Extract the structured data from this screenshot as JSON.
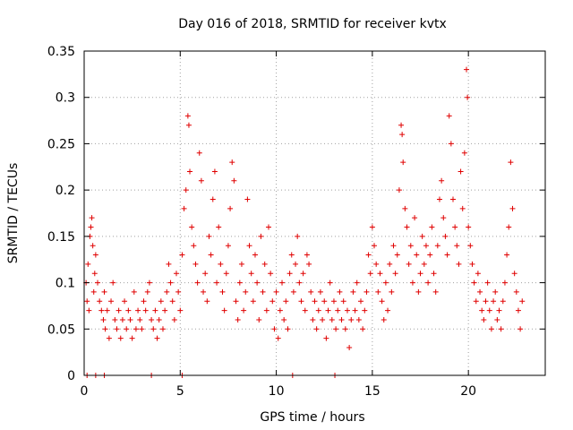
{
  "chart_data": {
    "type": "scatter",
    "title": "Day 016 of 2018, SRMTID for receiver kvtx",
    "xlabel": "GPS time / hours",
    "ylabel": "SRMTID / TECUs",
    "xlim": [
      0,
      24
    ],
    "ylim": [
      0,
      0.35
    ],
    "xticks": [
      0,
      5,
      10,
      15,
      20
    ],
    "xtick_labels": [
      "0",
      "5",
      "10",
      "15",
      "20"
    ],
    "yticks": [
      0,
      0.05,
      0.1,
      0.15,
      0.2,
      0.25,
      0.3,
      0.35
    ],
    "ytick_labels": [
      "0",
      "0.05",
      "0.1",
      "0.15",
      "0.2",
      "0.25",
      "0.3",
      "0.35"
    ],
    "grid": true,
    "legend": null,
    "marker": "+",
    "series": [
      {
        "name": "SRMTID",
        "color": "#e00000",
        "points": [
          [
            0.1,
            0.1
          ],
          [
            0.15,
            0.08
          ],
          [
            0.2,
            0.12
          ],
          [
            0.25,
            0.07
          ],
          [
            0.3,
            0.15
          ],
          [
            0.35,
            0.16
          ],
          [
            0.4,
            0.17
          ],
          [
            0.45,
            0.14
          ],
          [
            0.5,
            0.09
          ],
          [
            0.55,
            0.11
          ],
          [
            0.6,
            0.13
          ],
          [
            0.7,
            0.1
          ],
          [
            0.8,
            0.08
          ],
          [
            0.9,
            0.07
          ],
          [
            1.0,
            0.06
          ],
          [
            1.05,
            0.09
          ],
          [
            1.1,
            0.05
          ],
          [
            1.2,
            0.07
          ],
          [
            1.3,
            0.04
          ],
          [
            1.4,
            0.08
          ],
          [
            1.5,
            0.1
          ],
          [
            1.6,
            0.06
          ],
          [
            1.7,
            0.05
          ],
          [
            1.8,
            0.07
          ],
          [
            1.9,
            0.04
          ],
          [
            2.0,
            0.06
          ],
          [
            2.1,
            0.08
          ],
          [
            2.2,
            0.05
          ],
          [
            2.3,
            0.07
          ],
          [
            2.4,
            0.06
          ],
          [
            2.5,
            0.04
          ],
          [
            2.6,
            0.09
          ],
          [
            2.7,
            0.05
          ],
          [
            2.8,
            0.07
          ],
          [
            2.9,
            0.06
          ],
          [
            3.0,
            0.05
          ],
          [
            3.1,
            0.08
          ],
          [
            3.2,
            0.07
          ],
          [
            3.3,
            0.09
          ],
          [
            3.4,
            0.1
          ],
          [
            3.5,
            0.06
          ],
          [
            3.6,
            0.05
          ],
          [
            3.7,
            0.07
          ],
          [
            3.8,
            0.04
          ],
          [
            3.9,
            0.06
          ],
          [
            4.0,
            0.08
          ],
          [
            4.1,
            0.05
          ],
          [
            4.2,
            0.07
          ],
          [
            4.3,
            0.09
          ],
          [
            4.4,
            0.12
          ],
          [
            4.5,
            0.1
          ],
          [
            4.6,
            0.08
          ],
          [
            4.7,
            0.06
          ],
          [
            4.8,
            0.11
          ],
          [
            4.9,
            0.09
          ],
          [
            5.0,
            0.07
          ],
          [
            5.1,
            0.13
          ],
          [
            5.2,
            0.18
          ],
          [
            5.3,
            0.2
          ],
          [
            5.4,
            0.28
          ],
          [
            5.45,
            0.27
          ],
          [
            5.5,
            0.22
          ],
          [
            5.6,
            0.16
          ],
          [
            5.7,
            0.14
          ],
          [
            5.8,
            0.12
          ],
          [
            5.9,
            0.1
          ],
          [
            6.0,
            0.24
          ],
          [
            6.1,
            0.21
          ],
          [
            6.2,
            0.09
          ],
          [
            6.3,
            0.11
          ],
          [
            6.4,
            0.08
          ],
          [
            6.5,
            0.15
          ],
          [
            6.6,
            0.13
          ],
          [
            6.7,
            0.19
          ],
          [
            6.8,
            0.22
          ],
          [
            6.9,
            0.1
          ],
          [
            7.0,
            0.16
          ],
          [
            7.1,
            0.12
          ],
          [
            7.2,
            0.09
          ],
          [
            7.3,
            0.07
          ],
          [
            7.4,
            0.11
          ],
          [
            7.5,
            0.14
          ],
          [
            7.6,
            0.18
          ],
          [
            7.7,
            0.23
          ],
          [
            7.8,
            0.21
          ],
          [
            7.9,
            0.08
          ],
          [
            8.0,
            0.06
          ],
          [
            8.1,
            0.1
          ],
          [
            8.2,
            0.12
          ],
          [
            8.3,
            0.07
          ],
          [
            8.4,
            0.09
          ],
          [
            8.5,
            0.19
          ],
          [
            8.6,
            0.14
          ],
          [
            8.7,
            0.11
          ],
          [
            8.8,
            0.08
          ],
          [
            8.9,
            0.13
          ],
          [
            9.0,
            0.1
          ],
          [
            9.1,
            0.06
          ],
          [
            9.2,
            0.15
          ],
          [
            9.3,
            0.09
          ],
          [
            9.4,
            0.12
          ],
          [
            9.5,
            0.07
          ],
          [
            9.6,
            0.16
          ],
          [
            9.7,
            0.11
          ],
          [
            9.8,
            0.08
          ],
          [
            9.9,
            0.05
          ],
          [
            10.0,
            0.09
          ],
          [
            10.1,
            0.04
          ],
          [
            10.2,
            0.07
          ],
          [
            10.3,
            0.1
          ],
          [
            10.4,
            0.06
          ],
          [
            10.5,
            0.08
          ],
          [
            10.6,
            0.05
          ],
          [
            10.7,
            0.11
          ],
          [
            10.8,
            0.13
          ],
          [
            10.9,
            0.09
          ],
          [
            11.0,
            0.12
          ],
          [
            11.1,
            0.15
          ],
          [
            11.2,
            0.1
          ],
          [
            11.3,
            0.08
          ],
          [
            11.4,
            0.11
          ],
          [
            11.5,
            0.07
          ],
          [
            11.6,
            0.13
          ],
          [
            11.7,
            0.12
          ],
          [
            11.8,
            0.09
          ],
          [
            11.9,
            0.06
          ],
          [
            12.0,
            0.08
          ],
          [
            12.1,
            0.05
          ],
          [
            12.2,
            0.07
          ],
          [
            12.3,
            0.09
          ],
          [
            12.4,
            0.06
          ],
          [
            12.5,
            0.08
          ],
          [
            12.6,
            0.04
          ],
          [
            12.7,
            0.07
          ],
          [
            12.8,
            0.1
          ],
          [
            12.9,
            0.06
          ],
          [
            13.0,
            0.08
          ],
          [
            13.1,
            0.05
          ],
          [
            13.2,
            0.07
          ],
          [
            13.3,
            0.09
          ],
          [
            13.4,
            0.06
          ],
          [
            13.5,
            0.08
          ],
          [
            13.6,
            0.05
          ],
          [
            13.7,
            0.07
          ],
          [
            13.8,
            0.03
          ],
          [
            13.9,
            0.06
          ],
          [
            14.0,
            0.09
          ],
          [
            14.1,
            0.07
          ],
          [
            14.2,
            0.1
          ],
          [
            14.3,
            0.06
          ],
          [
            14.4,
            0.08
          ],
          [
            14.5,
            0.05
          ],
          [
            14.6,
            0.07
          ],
          [
            14.7,
            0.09
          ],
          [
            14.8,
            0.13
          ],
          [
            14.9,
            0.11
          ],
          [
            15.0,
            0.16
          ],
          [
            15.1,
            0.14
          ],
          [
            15.2,
            0.12
          ],
          [
            15.3,
            0.09
          ],
          [
            15.4,
            0.11
          ],
          [
            15.5,
            0.08
          ],
          [
            15.6,
            0.06
          ],
          [
            15.7,
            0.1
          ],
          [
            15.8,
            0.07
          ],
          [
            15.9,
            0.12
          ],
          [
            16.0,
            0.09
          ],
          [
            16.1,
            0.14
          ],
          [
            16.2,
            0.11
          ],
          [
            16.3,
            0.13
          ],
          [
            16.4,
            0.2
          ],
          [
            16.5,
            0.27
          ],
          [
            16.55,
            0.26
          ],
          [
            16.6,
            0.23
          ],
          [
            16.7,
            0.18
          ],
          [
            16.8,
            0.16
          ],
          [
            16.9,
            0.12
          ],
          [
            17.0,
            0.14
          ],
          [
            17.1,
            0.1
          ],
          [
            17.2,
            0.17
          ],
          [
            17.3,
            0.13
          ],
          [
            17.4,
            0.09
          ],
          [
            17.5,
            0.11
          ],
          [
            17.6,
            0.15
          ],
          [
            17.7,
            0.12
          ],
          [
            17.8,
            0.14
          ],
          [
            17.9,
            0.1
          ],
          [
            18.0,
            0.13
          ],
          [
            18.1,
            0.16
          ],
          [
            18.2,
            0.11
          ],
          [
            18.3,
            0.09
          ],
          [
            18.4,
            0.14
          ],
          [
            18.5,
            0.19
          ],
          [
            18.6,
            0.21
          ],
          [
            18.7,
            0.17
          ],
          [
            18.8,
            0.15
          ],
          [
            18.9,
            0.13
          ],
          [
            19.0,
            0.28
          ],
          [
            19.1,
            0.25
          ],
          [
            19.2,
            0.19
          ],
          [
            19.3,
            0.16
          ],
          [
            19.4,
            0.14
          ],
          [
            19.5,
            0.12
          ],
          [
            19.6,
            0.22
          ],
          [
            19.7,
            0.18
          ],
          [
            19.8,
            0.24
          ],
          [
            19.9,
            0.33
          ],
          [
            19.95,
            0.3
          ],
          [
            20.0,
            0.16
          ],
          [
            20.1,
            0.14
          ],
          [
            20.2,
            0.12
          ],
          [
            20.3,
            0.1
          ],
          [
            20.4,
            0.08
          ],
          [
            20.5,
            0.11
          ],
          [
            20.6,
            0.09
          ],
          [
            20.7,
            0.07
          ],
          [
            20.8,
            0.06
          ],
          [
            20.9,
            0.08
          ],
          [
            21.0,
            0.1
          ],
          [
            21.1,
            0.07
          ],
          [
            21.2,
            0.05
          ],
          [
            21.3,
            0.08
          ],
          [
            21.4,
            0.09
          ],
          [
            21.5,
            0.06
          ],
          [
            21.6,
            0.07
          ],
          [
            21.7,
            0.05
          ],
          [
            21.8,
            0.08
          ],
          [
            21.9,
            0.1
          ],
          [
            22.0,
            0.13
          ],
          [
            22.1,
            0.16
          ],
          [
            22.2,
            0.23
          ],
          [
            22.3,
            0.18
          ],
          [
            22.4,
            0.11
          ],
          [
            22.5,
            0.09
          ],
          [
            22.6,
            0.07
          ],
          [
            22.7,
            0.05
          ],
          [
            22.8,
            0.08
          ],
          [
            0.15,
            0.0
          ],
          [
            0.6,
            0.0
          ],
          [
            1.05,
            0.0
          ],
          [
            3.5,
            0.0
          ],
          [
            5.1,
            0.0
          ],
          [
            10.85,
            0.0
          ],
          [
            13.05,
            0.0
          ]
        ]
      }
    ]
  }
}
